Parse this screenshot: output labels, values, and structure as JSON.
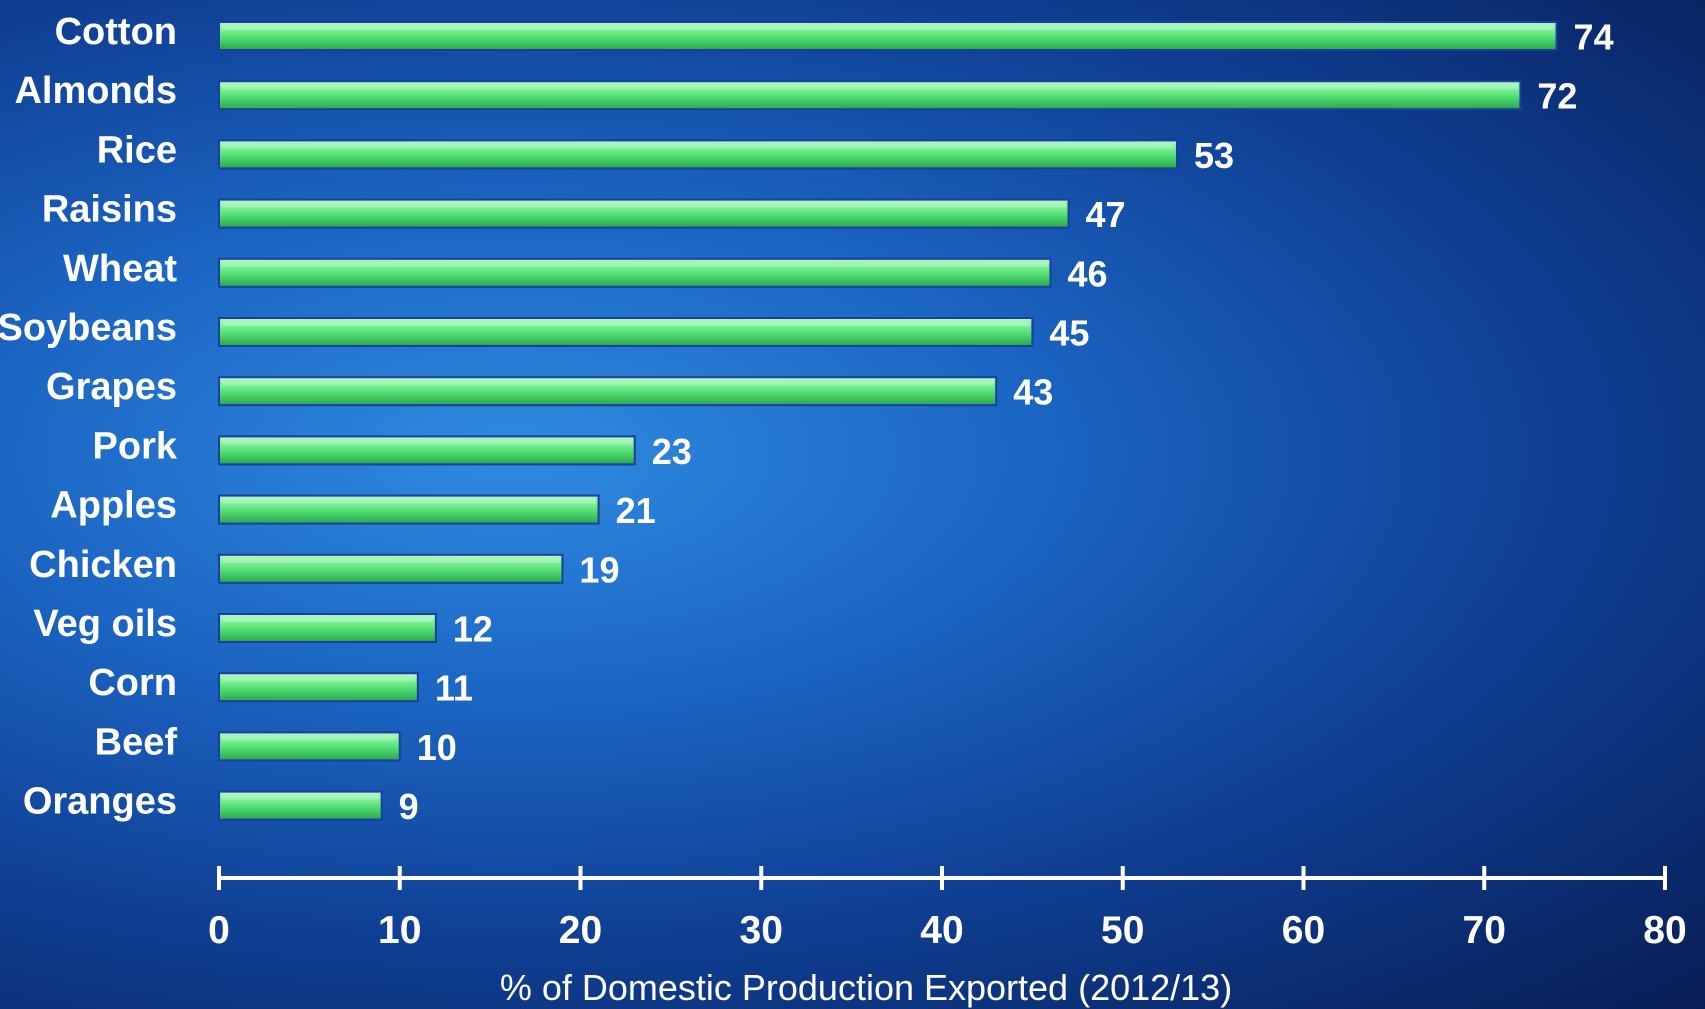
{
  "chart_data": {
    "type": "bar",
    "orientation": "horizontal",
    "categories": [
      "Cotton",
      "Almonds",
      "Rice",
      "Raisins",
      "Wheat",
      "Soybeans",
      "Grapes",
      "Pork",
      "Apples",
      "Chicken",
      "Veg oils",
      "Corn",
      "Beef",
      "Oranges"
    ],
    "values": [
      74,
      72,
      53,
      47,
      46,
      45,
      43,
      23,
      21,
      19,
      12,
      11,
      10,
      9
    ],
    "data_labels": [
      "74",
      "72",
      "53",
      "47",
      "46",
      "45",
      "43",
      "23",
      "21",
      "19",
      "12",
      "11",
      "10",
      "9"
    ],
    "xlabel": "% of Domestic Production Exported (2012/13)",
    "xlim": [
      0,
      80
    ],
    "xticks": [
      "0",
      "10",
      "20",
      "30",
      "40",
      "50",
      "60",
      "70",
      "80"
    ],
    "grid": false,
    "legend": "none",
    "colors": {
      "bar_fill": "#5ee87e",
      "bar_highlight": "#b4f7c4",
      "bar_shadow": "#27a84a",
      "bar_outline": "#1a3f9e",
      "text": "#ffffff",
      "axis": "#ffffff"
    }
  }
}
